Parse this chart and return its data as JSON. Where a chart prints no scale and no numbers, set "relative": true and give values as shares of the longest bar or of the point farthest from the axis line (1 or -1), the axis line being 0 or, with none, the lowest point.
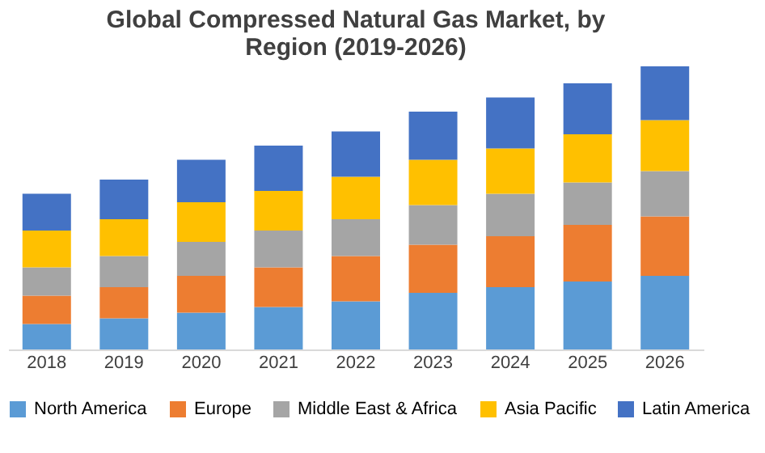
{
  "chart_data": {
    "type": "bar",
    "title": "Global Compressed Natural Gas Market, by Region (2019-2026)",
    "stacked": true,
    "relative": true,
    "legend": "bottom",
    "grid": false,
    "categories": [
      "2018",
      "2019",
      "2020",
      "2021",
      "2022",
      "2023",
      "2024",
      "2025",
      "2026"
    ],
    "series": [
      {
        "name": "North America",
        "color": "#5b9bd5",
        "values": [
          0.09,
          0.11,
          0.13,
          0.15,
          0.17,
          0.2,
          0.22,
          0.24,
          0.26
        ]
      },
      {
        "name": "Europe",
        "color": "#ed7d31",
        "values": [
          0.1,
          0.11,
          0.13,
          0.14,
          0.16,
          0.17,
          0.18,
          0.2,
          0.21
        ]
      },
      {
        "name": "Middle East & Africa",
        "color": "#a5a5a5",
        "values": [
          0.1,
          0.11,
          0.12,
          0.13,
          0.13,
          0.14,
          0.15,
          0.15,
          0.16
        ]
      },
      {
        "name": "Asia Pacific",
        "color": "#ffc000",
        "values": [
          0.13,
          0.13,
          0.14,
          0.14,
          0.15,
          0.16,
          0.16,
          0.17,
          0.18
        ]
      },
      {
        "name": "Latin America",
        "color": "#4472c4",
        "values": [
          0.13,
          0.14,
          0.15,
          0.16,
          0.16,
          0.17,
          0.18,
          0.18,
          0.19
        ]
      }
    ]
  }
}
